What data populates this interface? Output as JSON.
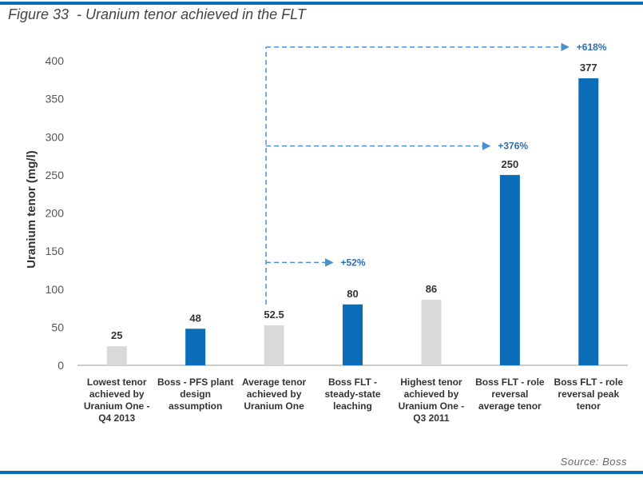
{
  "figure": {
    "title": "Figure 33  - Uranium tenor achieved in the FLT",
    "source": "Source: Boss"
  },
  "colors": {
    "accent": "#0b6db7",
    "grey_bar": "#d9d9d9",
    "annotation": "#4a8fcf"
  },
  "chart_data": {
    "type": "bar",
    "ylabel": "Uranium tenor (mg/l)",
    "ylim": [
      0,
      400
    ],
    "yticks": [
      "0",
      "50",
      "100",
      "150",
      "200",
      "250",
      "300",
      "350",
      "400"
    ],
    "categories": [
      [
        "Lowest tenor",
        "achieved by",
        "Uranium One -",
        "Q4 2013"
      ],
      [
        "Boss - PFS plant",
        "design",
        "assumption"
      ],
      [
        "Average tenor",
        "achieved by",
        "Uranium One"
      ],
      [
        "Boss FLT -",
        "steady-state",
        "leaching"
      ],
      [
        "Highest tenor",
        "achieved by",
        "Uranium One -",
        "Q3 2011"
      ],
      [
        "Boss FLT - role",
        "reversal",
        "average tenor"
      ],
      [
        "Boss FLT - role",
        "reversal peak",
        "tenor"
      ]
    ],
    "values": [
      25,
      48,
      52.5,
      80,
      86,
      250,
      377
    ],
    "value_labels": [
      "25",
      "48",
      "52.5",
      "80",
      "86",
      "250",
      "377"
    ],
    "bar_colors": [
      "grey",
      "blue",
      "grey",
      "blue",
      "grey",
      "blue",
      "blue"
    ],
    "grid": false,
    "annotations": [
      {
        "text": "+52%",
        "from_category": 2,
        "to_category": 3,
        "y": 135
      },
      {
        "text": "+376%",
        "from_category": 2,
        "to_category": 5,
        "y": 288
      },
      {
        "text": "+618%",
        "from_category": 2,
        "to_category": 6,
        "y": 418
      }
    ]
  }
}
